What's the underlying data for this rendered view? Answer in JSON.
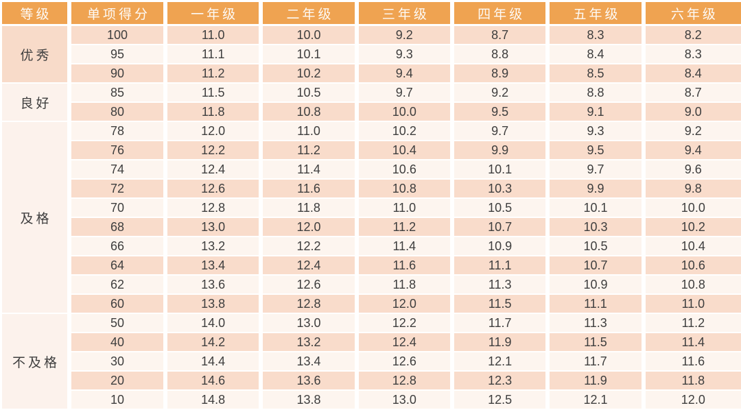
{
  "colors": {
    "header_bg": "#efa351",
    "header_text": "#fdfaf6",
    "row_dark": "#f9dccb",
    "row_light": "#fdf5ef",
    "group_dark": "#f8dbc9",
    "group_light": "#fcf2ec",
    "body_text": "#3e3e3e",
    "divider": "#ffffff"
  },
  "chart_data": {
    "type": "table",
    "title": "",
    "columns": [
      "等级",
      "单项得分",
      "一年级",
      "二年级",
      "三年级",
      "四年级",
      "五年级",
      "六年级"
    ],
    "groups": [
      {
        "grade": "优秀",
        "tone": "dark",
        "rows": [
          {
            "score": "100",
            "values": [
              "11.0",
              "10.0",
              "9.2",
              "8.7",
              "8.3",
              "8.2"
            ]
          },
          {
            "score": "95",
            "values": [
              "11.1",
              "10.1",
              "9.3",
              "8.8",
              "8.4",
              "8.3"
            ]
          },
          {
            "score": "90",
            "values": [
              "11.2",
              "10.2",
              "9.4",
              "8.9",
              "8.5",
              "8.4"
            ]
          }
        ]
      },
      {
        "grade": "良好",
        "tone": "light",
        "rows": [
          {
            "score": "85",
            "values": [
              "11.5",
              "10.5",
              "9.7",
              "9.2",
              "8.8",
              "8.7"
            ]
          },
          {
            "score": "80",
            "values": [
              "11.8",
              "10.8",
              "10.0",
              "9.5",
              "9.1",
              "9.0"
            ]
          }
        ]
      },
      {
        "grade": "及格",
        "tone": "light",
        "rows": [
          {
            "score": "78",
            "values": [
              "12.0",
              "11.0",
              "10.2",
              "9.7",
              "9.3",
              "9.2"
            ]
          },
          {
            "score": "76",
            "values": [
              "12.2",
              "11.2",
              "10.4",
              "9.9",
              "9.5",
              "9.4"
            ]
          },
          {
            "score": "74",
            "values": [
              "12.4",
              "11.4",
              "10.6",
              "10.1",
              "9.7",
              "9.6"
            ]
          },
          {
            "score": "72",
            "values": [
              "12.6",
              "11.6",
              "10.8",
              "10.3",
              "9.9",
              "9.8"
            ]
          },
          {
            "score": "70",
            "values": [
              "12.8",
              "11.8",
              "11.0",
              "10.5",
              "10.1",
              "10.0"
            ]
          },
          {
            "score": "68",
            "values": [
              "13.0",
              "12.0",
              "11.2",
              "10.7",
              "10.3",
              "10.2"
            ]
          },
          {
            "score": "66",
            "values": [
              "13.2",
              "12.2",
              "11.4",
              "10.9",
              "10.5",
              "10.4"
            ]
          },
          {
            "score": "64",
            "values": [
              "13.4",
              "12.4",
              "11.6",
              "11.1",
              "10.7",
              "10.6"
            ]
          },
          {
            "score": "62",
            "values": [
              "13.6",
              "12.6",
              "11.8",
              "11.3",
              "10.9",
              "10.8"
            ]
          },
          {
            "score": "60",
            "values": [
              "13.8",
              "12.8",
              "12.0",
              "11.5",
              "11.1",
              "11.0"
            ]
          }
        ]
      },
      {
        "grade": "不及格",
        "tone": "light",
        "rows": [
          {
            "score": "50",
            "values": [
              "14.0",
              "13.0",
              "12.2",
              "11.7",
              "11.3",
              "11.2"
            ]
          },
          {
            "score": "40",
            "values": [
              "14.2",
              "13.2",
              "12.4",
              "11.9",
              "11.5",
              "11.4"
            ]
          },
          {
            "score": "30",
            "values": [
              "14.4",
              "13.4",
              "12.6",
              "12.1",
              "11.7",
              "11.6"
            ]
          },
          {
            "score": "20",
            "values": [
              "14.6",
              "13.6",
              "12.8",
              "12.3",
              "11.9",
              "11.8"
            ]
          },
          {
            "score": "10",
            "values": [
              "14.8",
              "13.8",
              "13.0",
              "12.5",
              "12.1",
              "12.0"
            ]
          }
        ]
      }
    ]
  }
}
